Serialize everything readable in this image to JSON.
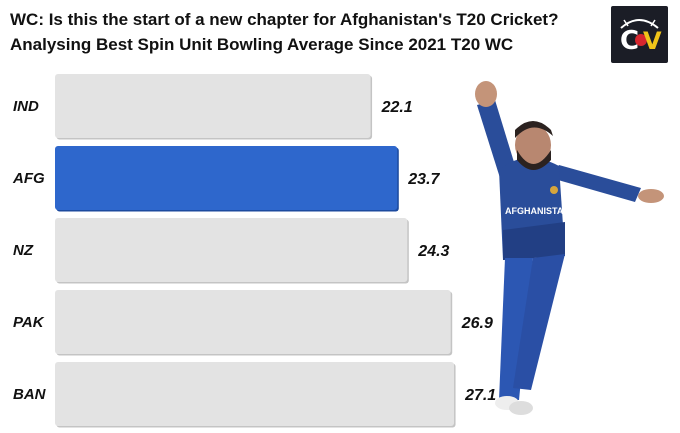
{
  "header": {
    "title_line1": "WC: Is this the start of a new chapter for Afghanistan's T20 Cricket?",
    "title_line2": "Analysing Best Spin Unit Bowling Average Since 2021 T20 WC"
  },
  "logo": {
    "text_c": "C",
    "text_v": "V"
  },
  "player": {
    "jersey_text": "AFGHANISTAN"
  },
  "colors": {
    "highlight": "#2e67cc",
    "bar": "#e3e3e3",
    "bar_shadow": "#c4c4c4",
    "text": "#111111"
  },
  "chart_data": {
    "type": "bar",
    "orientation": "horizontal",
    "categories": [
      "IND",
      "AFG",
      "NZ",
      "PAK",
      "BAN"
    ],
    "values": [
      22.1,
      23.7,
      24.3,
      26.9,
      27.1
    ],
    "highlight": "AFG",
    "title": "WC: Is this the start of a new chapter for Afghanistan's T20 Cricket? Analysing Best Spin Unit Bowling Average Since 2021 T20 WC",
    "xlabel": "",
    "ylabel": "",
    "grid": false
  }
}
